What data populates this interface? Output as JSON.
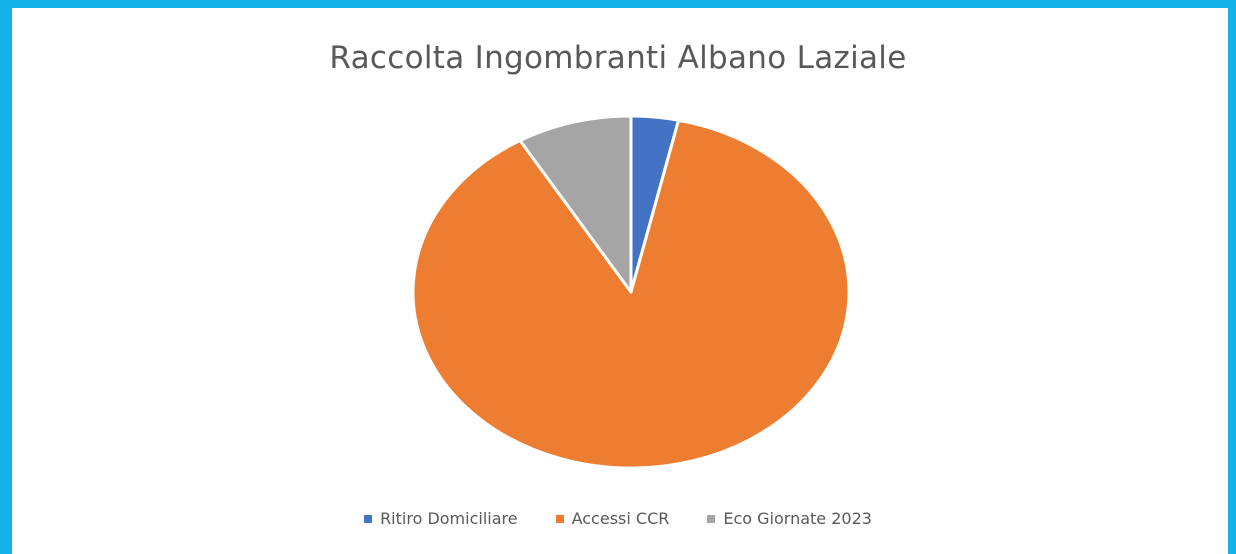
{
  "chart_data": {
    "type": "pie",
    "title": "Raccolta Ingombranti Albano Laziale",
    "categories": [
      "Ritiro Domiciliare",
      "Accessi CCR",
      "Eco Giornate 2023"
    ],
    "values": [
      3.5,
      88,
      8.5
    ],
    "colors": [
      "#4472c4",
      "#ed7d31",
      "#a5a5a5"
    ],
    "legend_position": "bottom"
  }
}
